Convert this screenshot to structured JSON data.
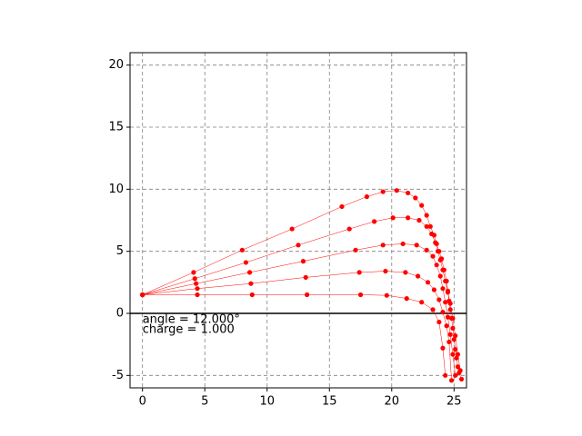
{
  "chart_data": {
    "type": "line",
    "xlim": [
      -1,
      26
    ],
    "ylim": [
      -6,
      21
    ],
    "xticks": [
      0,
      5,
      10,
      15,
      20,
      25
    ],
    "yticks": [
      -5,
      0,
      5,
      10,
      15,
      20
    ],
    "grid": true,
    "color": "#ff0000",
    "annotations": [
      "angle = 12.000°",
      "charge = 1.000"
    ],
    "series": [
      {
        "x": [
          0,
          4.1,
          8.0,
          12.0,
          16.0,
          18.0,
          19.3,
          20.4,
          21.3,
          21.9,
          22.4,
          22.8,
          23.1,
          23.4,
          23.6,
          23.8,
          24.0,
          24.2,
          24.4,
          24.5,
          24.6,
          24.7,
          24.8,
          24.9,
          25.0,
          25.1,
          25.2,
          25.3,
          25.4,
          25.6
        ],
        "values": [
          1.5,
          3.3,
          5.1,
          6.8,
          8.6,
          9.4,
          9.8,
          9.9,
          9.7,
          9.3,
          8.7,
          7.9,
          7.0,
          6.3,
          5.6,
          5.0,
          4.4,
          3.5,
          2.6,
          1.8,
          1.0,
          0.3,
          -0.4,
          -1.2,
          -2.1,
          -2.9,
          -3.6,
          -4.3,
          -4.8,
          -5.3
        ]
      },
      {
        "x": [
          0,
          4.2,
          8.3,
          12.5,
          16.6,
          18.6,
          20.1,
          21.3,
          22.2,
          22.8,
          23.2,
          23.5,
          23.7,
          23.9,
          24.1,
          24.3,
          24.5,
          24.7,
          24.9,
          25.1,
          25.3,
          25.5
        ],
        "values": [
          1.5,
          2.8,
          4.1,
          5.5,
          6.8,
          7.4,
          7.7,
          7.7,
          7.5,
          7.0,
          6.4,
          5.7,
          5.0,
          4.3,
          3.5,
          2.6,
          1.7,
          0.8,
          -0.4,
          -1.8,
          -3.3,
          -4.6
        ]
      },
      {
        "x": [
          0,
          4.3,
          8.6,
          12.9,
          17.1,
          19.3,
          20.9,
          22.0,
          22.8,
          23.3,
          23.6,
          23.9,
          24.1,
          24.3,
          24.5,
          24.7,
          24.9,
          25.1
        ],
        "values": [
          1.5,
          2.4,
          3.3,
          4.2,
          5.1,
          5.5,
          5.6,
          5.5,
          5.1,
          4.6,
          3.9,
          3.0,
          2.0,
          0.9,
          -0.3,
          -1.7,
          -3.3,
          -5.0
        ]
      },
      {
        "x": [
          0,
          4.4,
          8.7,
          13.1,
          17.4,
          19.5,
          21.1,
          22.1,
          22.9,
          23.4,
          23.8,
          24.1,
          24.4,
          24.6,
          24.8
        ],
        "values": [
          1.5,
          2.0,
          2.4,
          2.9,
          3.3,
          3.4,
          3.3,
          3.0,
          2.5,
          1.9,
          1.1,
          0.1,
          -1.0,
          -2.3,
          -5.4
        ]
      },
      {
        "x": [
          0,
          4.4,
          8.8,
          13.2,
          17.5,
          19.6,
          21.2,
          22.4,
          23.3,
          23.8,
          24.1,
          24.3
        ],
        "values": [
          1.5,
          1.5,
          1.5,
          1.5,
          1.5,
          1.45,
          1.2,
          0.9,
          0.3,
          -0.7,
          -2.8,
          -5.0
        ]
      }
    ]
  }
}
